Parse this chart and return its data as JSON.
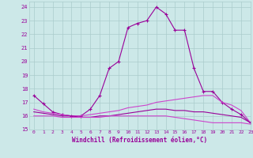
{
  "xlabel": "Windchill (Refroidissement éolien,°C)",
  "xlim": [
    -0.5,
    23
  ],
  "ylim": [
    15,
    24.4
  ],
  "xticks": [
    0,
    1,
    2,
    3,
    4,
    5,
    6,
    7,
    8,
    9,
    10,
    11,
    12,
    13,
    14,
    15,
    16,
    17,
    18,
    19,
    20,
    21,
    22,
    23
  ],
  "yticks": [
    15,
    16,
    17,
    18,
    19,
    20,
    21,
    22,
    23,
    24
  ],
  "background_color": "#cce8e8",
  "grid_color": "#aacccc",
  "line_color": "#990099",
  "line_color2": "#cc44cc",
  "series": [
    {
      "x": [
        0,
        1,
        2,
        3,
        4,
        5,
        6,
        7,
        8,
        9,
        10,
        11,
        12,
        13,
        14,
        15,
        16,
        17,
        18,
        19,
        20,
        21,
        22,
        23
      ],
      "y": [
        17.5,
        16.9,
        16.3,
        16.1,
        16.0,
        16.0,
        16.5,
        17.5,
        19.5,
        20.0,
        22.5,
        22.8,
        23.0,
        24.0,
        23.5,
        22.3,
        22.3,
        19.5,
        17.8,
        17.8,
        17.0,
        16.5,
        16.1,
        15.5
      ],
      "marker": "+",
      "color": "#990099"
    },
    {
      "x": [
        0,
        1,
        2,
        3,
        4,
        5,
        6,
        7,
        8,
        9,
        10,
        11,
        12,
        13,
        14,
        15,
        16,
        17,
        18,
        19,
        20,
        21,
        22,
        23
      ],
      "y": [
        16.5,
        16.3,
        16.2,
        16.1,
        16.0,
        16.0,
        16.1,
        16.2,
        16.3,
        16.4,
        16.6,
        16.7,
        16.8,
        17.0,
        17.1,
        17.2,
        17.3,
        17.4,
        17.5,
        17.5,
        17.0,
        16.8,
        16.4,
        15.5
      ],
      "marker": null,
      "color": "#cc44cc"
    },
    {
      "x": [
        0,
        1,
        2,
        3,
        4,
        5,
        6,
        7,
        8,
        9,
        10,
        11,
        12,
        13,
        14,
        15,
        16,
        17,
        18,
        19,
        20,
        21,
        22,
        23
      ],
      "y": [
        16.3,
        16.2,
        16.1,
        16.0,
        16.0,
        15.9,
        15.9,
        16.0,
        16.0,
        16.1,
        16.2,
        16.3,
        16.4,
        16.5,
        16.5,
        16.4,
        16.4,
        16.3,
        16.3,
        16.2,
        16.1,
        16.0,
        15.9,
        15.5
      ],
      "marker": null,
      "color": "#990099"
    },
    {
      "x": [
        0,
        1,
        2,
        3,
        4,
        5,
        6,
        7,
        8,
        9,
        10,
        11,
        12,
        13,
        14,
        15,
        16,
        17,
        18,
        19,
        20,
        21,
        22,
        23
      ],
      "y": [
        16.0,
        16.0,
        16.0,
        15.9,
        15.9,
        15.9,
        15.9,
        15.9,
        16.0,
        16.0,
        16.0,
        16.0,
        16.0,
        16.0,
        16.0,
        15.9,
        15.8,
        15.7,
        15.6,
        15.5,
        15.5,
        15.5,
        15.5,
        15.4
      ],
      "marker": null,
      "color": "#cc44cc"
    }
  ]
}
